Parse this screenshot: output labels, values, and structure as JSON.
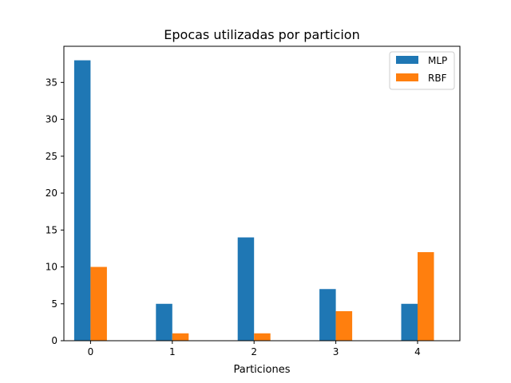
{
  "chart_data": {
    "type": "bar",
    "title": "Epocas utilizadas por particion",
    "xlabel": "Particiones",
    "ylabel": "",
    "categories": [
      "0",
      "1",
      "2",
      "3",
      "4"
    ],
    "series": [
      {
        "name": "MLP",
        "values": [
          38,
          5,
          14,
          7,
          5
        ],
        "color": "#1f77b4"
      },
      {
        "name": "RBF",
        "values": [
          10,
          1,
          1,
          4,
          12
        ],
        "color": "#ff7f0e"
      }
    ],
    "ylim": [
      0,
      39.9
    ],
    "yticks": [
      0,
      5,
      10,
      15,
      20,
      25,
      30,
      35
    ],
    "grid": false,
    "legend_position": "top-right"
  }
}
